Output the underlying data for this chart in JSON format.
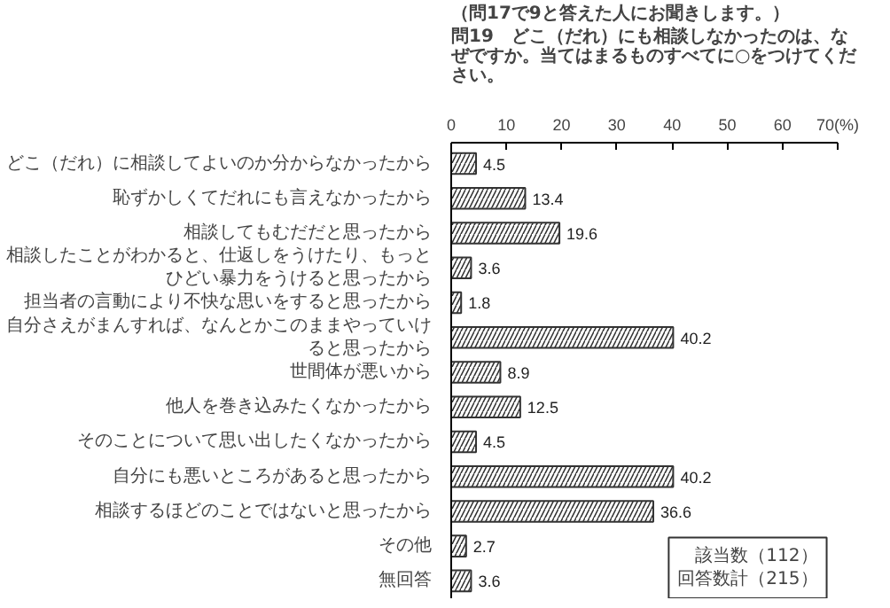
{
  "chart_data": {
    "type": "bar",
    "orientation": "horizontal",
    "subtitle": "（問17で9と答えた人にお聞きします。）",
    "title": "問19　どこ（だれ）にも相談しなかったのは、なぜですか。当てはまるものすべてに○をつけてください。",
    "categories": [
      "どこ（だれ）に相談してよいのか分からなかったから",
      "恥ずかしくてだれにも言えなかったから",
      "相談してもむだだと思ったから",
      "相談したことがわかると、仕返しをうけたり、もっとひどい暴力をうけると思ったから",
      "担当者の言動により不快な思いをすると思ったから",
      "自分さえがまんすれば、なんとかこのままやっていけると思ったから",
      "世間体が悪いから",
      "他人を巻き込みたくなかったから",
      "そのことについて思い出したくなかったから",
      "自分にも悪いところがあると思ったから",
      "相談するほどのことではないと思ったから",
      "その他",
      "無回答"
    ],
    "values": [
      4.5,
      13.4,
      19.6,
      3.6,
      1.8,
      40.2,
      8.9,
      12.5,
      4.5,
      40.2,
      36.6,
      2.7,
      3.6
    ],
    "color": "#333333",
    "xlim": [
      0,
      70
    ],
    "xticks": [
      0,
      10,
      20,
      30,
      40,
      50,
      60,
      {
        "value": 70,
        "label": "70(%)"
      }
    ],
    "data_labels": true,
    "grid": false,
    "annotations": [
      "該当数（112）",
      "回答数計（215）"
    ]
  }
}
